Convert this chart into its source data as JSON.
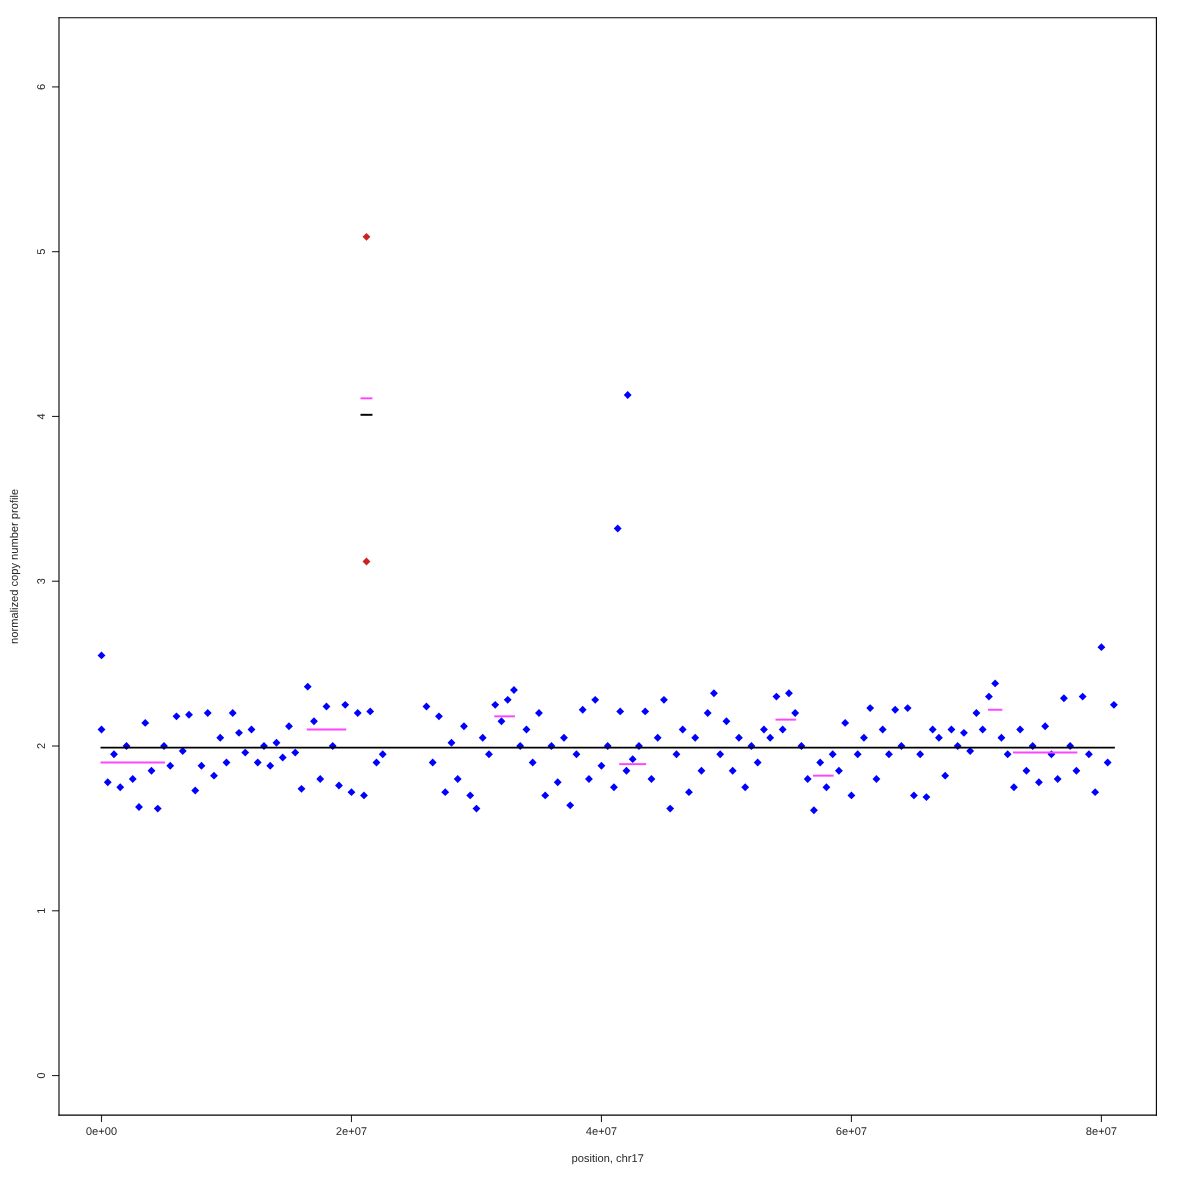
{
  "chart_data": {
    "type": "scatter",
    "xlabel": "position, chr17",
    "ylabel": "normalized copy number profile",
    "marker": "diamond",
    "grid": false,
    "xlim": [
      -3400000,
      84400000
    ],
    "ylim": [
      -0.24,
      6.42
    ],
    "xticks": [
      {
        "value": 0,
        "label": "0e+00"
      },
      {
        "value": 20000000,
        "label": "2e+07"
      },
      {
        "value": 40000000,
        "label": "4e+07"
      },
      {
        "value": 60000000,
        "label": "6e+07"
      },
      {
        "value": 80000000,
        "label": "8e+07"
      }
    ],
    "yticks": [
      0,
      1,
      2,
      3,
      4,
      5,
      6
    ],
    "series": [
      {
        "color": "#0000ff",
        "x": [
          0,
          0,
          500000,
          1000000,
          1500000,
          2000000,
          2500000,
          3000000,
          3500000,
          4000000,
          4500000,
          5000000,
          5500000,
          6000000,
          6500000,
          7000000,
          7500000,
          8000000,
          8500000,
          9000000,
          9500000,
          10000000,
          10500000,
          11000000,
          11500000,
          12000000,
          12500000,
          13000000,
          13500000,
          14000000,
          14500000,
          15000000,
          15500000,
          16000000,
          16500000,
          17000000,
          17500000,
          18000000,
          18500000,
          19000000,
          19500000,
          20000000,
          20500000,
          21000000,
          21500000,
          22000000,
          22500000,
          26000000,
          26500000,
          27000000,
          27500000,
          28000000,
          28500000,
          29000000,
          29500000,
          30000000,
          30500000,
          31000000,
          31500000,
          32000000,
          32500000,
          33000000,
          33500000,
          34000000,
          34500000,
          35000000,
          35500000,
          36000000,
          36500000,
          37000000,
          37500000,
          38000000,
          38500000,
          39000000,
          39500000,
          40000000,
          40500000,
          41000000,
          41300000,
          41500000,
          42000000,
          42100000,
          42500000,
          43000000,
          43500000,
          44000000,
          44500000,
          45000000,
          45500000,
          46000000,
          46500000,
          47000000,
          47500000,
          48000000,
          48500000,
          49000000,
          49500000,
          50000000,
          50500000,
          51000000,
          51500000,
          52000000,
          52500000,
          53000000,
          53500000,
          54000000,
          54500000,
          55000000,
          55500000,
          56000000,
          56500000,
          57000000,
          57500000,
          58000000,
          58500000,
          59000000,
          59500000,
          60000000,
          60500000,
          61000000,
          61500000,
          62000000,
          62500000,
          63000000,
          63500000,
          64000000,
          64500000,
          65000000,
          65500000,
          66000000,
          66500000,
          67000000,
          67500000,
          68000000,
          68500000,
          69000000,
          69500000,
          70000000,
          70500000,
          71000000,
          71500000,
          72000000,
          72500000,
          73000000,
          73500000,
          74000000,
          74500000,
          75000000,
          75500000,
          76000000,
          76500000,
          77000000,
          77500000,
          78000000,
          78500000,
          79000000,
          79500000,
          80000000,
          80500000,
          81000000
        ],
        "values": [
          2.55,
          2.1,
          1.78,
          1.95,
          1.75,
          2.0,
          1.8,
          1.63,
          2.14,
          1.85,
          1.62,
          2.0,
          1.88,
          2.18,
          1.97,
          2.19,
          1.73,
          1.88,
          2.2,
          1.82,
          2.05,
          1.9,
          2.2,
          2.08,
          1.96,
          2.1,
          1.9,
          2.0,
          1.88,
          2.02,
          1.93,
          2.12,
          1.96,
          1.74,
          2.36,
          2.15,
          1.8,
          2.24,
          2.0,
          1.76,
          2.25,
          1.72,
          2.2,
          1.7,
          2.21,
          1.9,
          1.95,
          2.24,
          1.9,
          2.18,
          1.72,
          2.02,
          1.8,
          2.12,
          1.7,
          1.62,
          2.05,
          1.95,
          2.25,
          2.15,
          2.28,
          2.34,
          2.0,
          2.1,
          1.9,
          2.2,
          1.7,
          2.0,
          1.78,
          2.05,
          1.64,
          1.95,
          2.22,
          1.8,
          2.28,
          1.88,
          2.0,
          1.75,
          3.32,
          2.21,
          1.85,
          4.13,
          1.92,
          2.0,
          2.21,
          1.8,
          2.05,
          2.28,
          1.62,
          1.95,
          2.1,
          1.72,
          2.05,
          1.85,
          2.2,
          2.32,
          1.95,
          2.15,
          1.85,
          2.05,
          1.75,
          2.0,
          1.9,
          2.1,
          2.05,
          2.3,
          2.1,
          2.32,
          2.2,
          2.0,
          1.8,
          1.61,
          1.9,
          1.75,
          1.95,
          1.85,
          2.14,
          1.7,
          1.95,
          2.05,
          2.23,
          1.8,
          2.1,
          1.95,
          2.22,
          2.0,
          2.23,
          1.7,
          1.95,
          1.69,
          2.1,
          2.05,
          1.82,
          2.1,
          2.0,
          2.08,
          1.97,
          2.2,
          2.1,
          2.3,
          2.38,
          2.05,
          1.95,
          1.75,
          2.1,
          1.85,
          2.0,
          1.78,
          2.12,
          1.95,
          1.8,
          2.29,
          2.0,
          1.85,
          2.3,
          1.95,
          1.72,
          2.6,
          1.9,
          2.25
        ]
      },
      {
        "color": "#cc2222",
        "x": [
          21200000,
          21200000
        ],
        "values": [
          5.09,
          3.12
        ]
      },
      {
        "type": "line",
        "marker": "none",
        "color": "#000000",
        "x": [
          0,
          81000000
        ],
        "values": [
          1.99,
          1.99
        ]
      },
      {
        "type": "line",
        "marker": "none",
        "color": "#000000",
        "x": [
          20800000,
          21600000
        ],
        "values": [
          4.01,
          4.01
        ]
      },
      {
        "type": "line",
        "marker": "none",
        "color": "#ff44ff",
        "x": [
          0,
          5000000
        ],
        "values": [
          1.9,
          1.9
        ]
      },
      {
        "type": "line",
        "marker": "none",
        "color": "#ff44ff",
        "x": [
          16500000,
          19500000
        ],
        "values": [
          2.1,
          2.1
        ]
      },
      {
        "type": "line",
        "marker": "none",
        "color": "#ff44ff",
        "x": [
          20800000,
          21600000
        ],
        "values": [
          4.11,
          4.11
        ]
      },
      {
        "type": "line",
        "marker": "none",
        "color": "#ff44ff",
        "x": [
          31500000,
          33000000
        ],
        "values": [
          2.18,
          2.18
        ]
      },
      {
        "type": "line",
        "marker": "none",
        "color": "#ff44ff",
        "x": [
          41500000,
          43500000
        ],
        "values": [
          1.89,
          1.89
        ]
      },
      {
        "type": "line",
        "marker": "none",
        "color": "#ff44ff",
        "x": [
          54000000,
          55500000
        ],
        "values": [
          2.16,
          2.16
        ]
      },
      {
        "type": "line",
        "marker": "none",
        "color": "#ff44ff",
        "x": [
          57000000,
          58500000
        ],
        "values": [
          1.82,
          1.82
        ]
      },
      {
        "type": "line",
        "marker": "none",
        "color": "#ff44ff",
        "x": [
          71000000,
          72000000
        ],
        "values": [
          2.22,
          2.22
        ]
      },
      {
        "type": "line",
        "marker": "none",
        "color": "#ff44ff",
        "x": [
          73000000,
          78000000
        ],
        "values": [
          1.96,
          1.96
        ]
      }
    ]
  }
}
